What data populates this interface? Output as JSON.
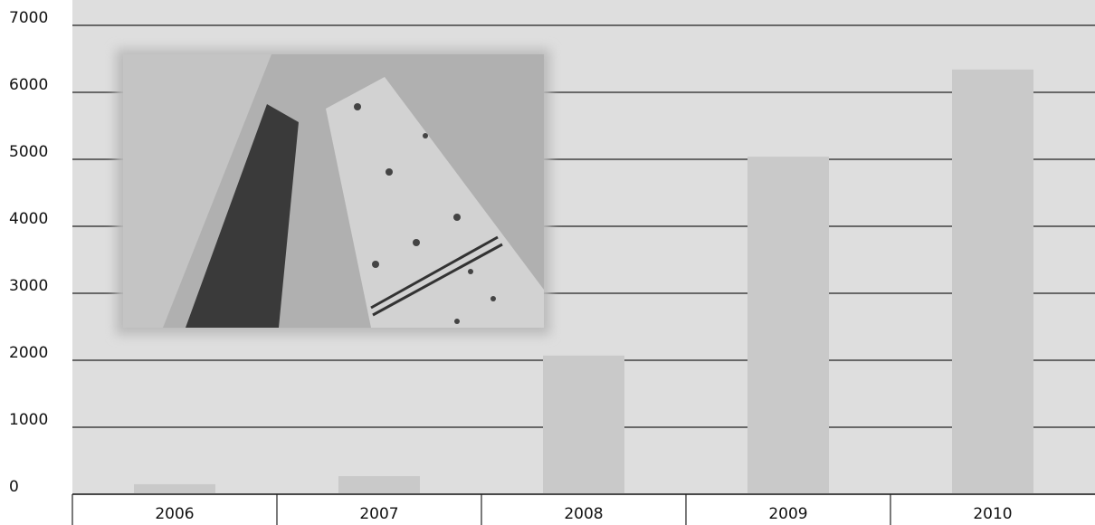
{
  "chart_data": {
    "type": "bar",
    "categories": [
      "2006",
      "2007",
      "2008",
      "2009",
      "2010"
    ],
    "values": [
      150,
      270,
      2070,
      5040,
      6340
    ],
    "color": "#c9c9c9",
    "ylim": [
      0,
      7000
    ],
    "yticks": [
      0,
      1000,
      2000,
      3000,
      4000,
      5000,
      6000,
      7000
    ],
    "grid": true
  }
}
